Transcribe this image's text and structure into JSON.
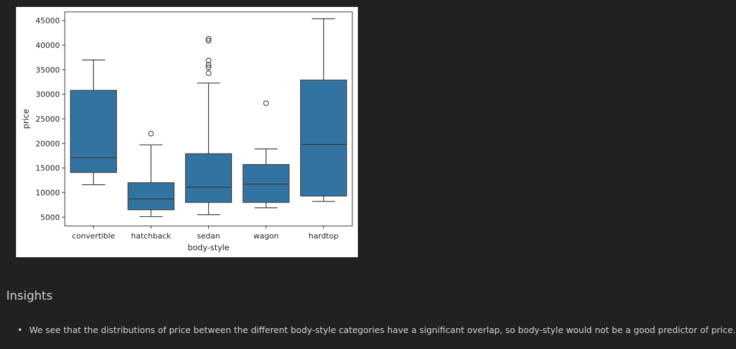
{
  "chart_data": {
    "type": "box",
    "xlabel": "body-style",
    "ylabel": "price",
    "ylim": [
      3200,
      46800
    ],
    "yticks": [
      5000,
      10000,
      15000,
      20000,
      25000,
      30000,
      35000,
      40000,
      45000
    ],
    "box_color": "#3274a1",
    "line_color": "#3d3d3d",
    "categories": [
      "convertible",
      "hatchback",
      "sedan",
      "wagon",
      "hardtop"
    ],
    "boxes": [
      {
        "category": "convertible",
        "whisker_low": 11600,
        "q1": 14100,
        "median": 17100,
        "q3": 30800,
        "whisker_high": 37000,
        "outliers": []
      },
      {
        "category": "hatchback",
        "whisker_low": 5100,
        "q1": 6500,
        "median": 8700,
        "q3": 12000,
        "whisker_high": 19700,
        "outliers": [
          22000
        ]
      },
      {
        "category": "sedan",
        "whisker_low": 5500,
        "q1": 8000,
        "median": 11100,
        "q3": 17900,
        "whisker_high": 32300,
        "outliers": [
          34300,
          35500,
          36000,
          36900,
          40900,
          41300
        ]
      },
      {
        "category": "wagon",
        "whisker_low": 6900,
        "q1": 8000,
        "median": 11700,
        "q3": 15700,
        "whisker_high": 18900,
        "outliers": [
          28200
        ]
      },
      {
        "category": "hardtop",
        "whisker_low": 8200,
        "q1": 9300,
        "median": 19800,
        "q3": 32900,
        "whisker_high": 45400,
        "outliers": []
      }
    ]
  },
  "insights": {
    "heading": "Insights",
    "items": [
      "We see that the distributions of price between the different body-style categories have a significant overlap, so body-style would not be a good predictor of price."
    ]
  }
}
